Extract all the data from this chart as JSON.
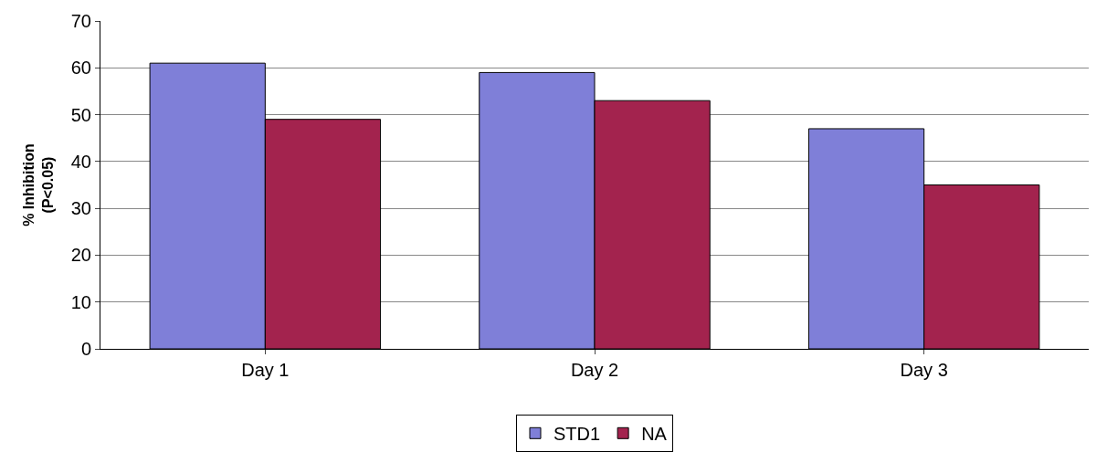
{
  "chart_data": {
    "type": "bar",
    "ylabel": "% Inhibition\n(P<0.05)",
    "categories": [
      "Day 1",
      "Day 2",
      "Day 3"
    ],
    "series": [
      {
        "name": "STD1",
        "color": "#7f7fd8",
        "values": [
          61,
          59,
          47
        ]
      },
      {
        "name": "NA",
        "color": "#a3234e",
        "values": [
          49,
          53,
          35
        ]
      }
    ],
    "ylim": [
      0,
      70
    ],
    "yticks": [
      0,
      10,
      20,
      30,
      40,
      50,
      60,
      70
    ],
    "grid": "y",
    "legend": "bottom"
  }
}
